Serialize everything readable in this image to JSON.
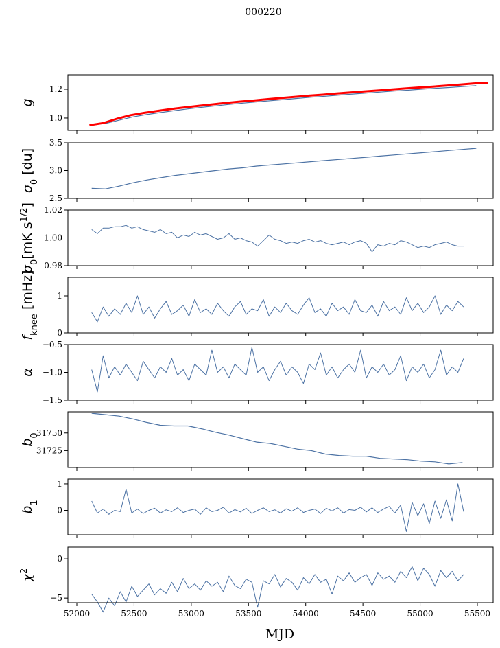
{
  "chart_data": {
    "type": "line",
    "title": "000220",
    "xlabel": "MJD",
    "xlim": [
      51922,
      55638
    ],
    "xticks": [
      52000,
      52500,
      53000,
      53500,
      54000,
      54500,
      55000,
      55500
    ],
    "line_color": "#4c72a4",
    "panels": [
      {
        "ylabel": {
          "main": "g",
          "sub": "",
          "sup": "",
          "tail": ""
        },
        "ylim": [
          0.914,
          1.3
        ],
        "yticks": [
          {
            "v": 1.0,
            "t": "1.0"
          },
          {
            "v": 1.2,
            "t": "1.2"
          }
        ],
        "series": [
          {
            "name": "g",
            "color": "#4c72a4",
            "width": 1.2,
            "x_start": 52130,
            "x_step": 120,
            "values": [
              0.958,
              0.962,
              0.985,
              1.008,
              1.024,
              1.038,
              1.051,
              1.063,
              1.074,
              1.084,
              1.094,
              1.103,
              1.112,
              1.12,
              1.128,
              1.136,
              1.144,
              1.151,
              1.159,
              1.166,
              1.173,
              1.18,
              1.187,
              1.193,
              1.2,
              1.206,
              1.212,
              1.218,
              1.224
            ]
          },
          {
            "name": "g_ref",
            "color": "#ff0000",
            "width": 3,
            "x_start": 52110,
            "x_step": 120,
            "values": [
              0.95,
              0.965,
              0.995,
              1.02,
              1.036,
              1.05,
              1.063,
              1.074,
              1.085,
              1.095,
              1.105,
              1.114,
              1.122,
              1.131,
              1.139,
              1.147,
              1.155,
              1.162,
              1.17,
              1.177,
              1.184,
              1.191,
              1.198,
              1.205,
              1.212,
              1.218,
              1.225,
              1.232,
              1.24,
              1.245
            ]
          }
        ]
      },
      {
        "ylabel": {
          "main": "σ",
          "sub": "0",
          "sup": "",
          "tail": " [du]"
        },
        "ylim": [
          2.5,
          3.5
        ],
        "yticks": [
          {
            "v": 2.5,
            "t": "2.5"
          },
          {
            "v": 3.0,
            "t": "3.0"
          },
          {
            "v": 3.5,
            "t": "3.5"
          }
        ],
        "series": [
          {
            "name": "sigma0_du",
            "color": "#4c72a4",
            "width": 1.2,
            "x_start": 52130,
            "x_step": 120,
            "values": [
              2.68,
              2.67,
              2.72,
              2.78,
              2.83,
              2.87,
              2.91,
              2.94,
              2.97,
              3.0,
              3.03,
              3.05,
              3.08,
              3.1,
              3.12,
              3.14,
              3.16,
              3.18,
              3.2,
              3.22,
              3.24,
              3.26,
              3.28,
              3.3,
              3.32,
              3.34,
              3.36,
              3.38,
              3.4
            ]
          }
        ]
      },
      {
        "ylabel": {
          "main": "σ",
          "sub": "0",
          "sup": "",
          "tail": "[mK s",
          "sup2": "1/2",
          "tail2": "]"
        },
        "ylim": [
          0.98,
          1.02
        ],
        "yticks": [
          {
            "v": 0.98,
            "t": "0.98"
          },
          {
            "v": 1.0,
            "t": "1.00"
          },
          {
            "v": 1.02,
            "t": "1.02"
          }
        ],
        "series": [
          {
            "name": "sigma0_mK",
            "color": "#4c72a4",
            "width": 1,
            "x_start": 52130,
            "x_step": 50,
            "values": [
              1.006,
              1.003,
              1.007,
              1.007,
              1.008,
              1.008,
              1.009,
              1.007,
              1.008,
              1.006,
              1.005,
              1.004,
              1.006,
              1.003,
              1.004,
              1.0,
              1.002,
              1.001,
              1.004,
              1.002,
              1.003,
              1.001,
              0.999,
              1.0,
              1.003,
              0.999,
              1.0,
              0.998,
              0.997,
              0.994,
              0.998,
              1.002,
              0.999,
              0.998,
              0.996,
              0.997,
              0.996,
              0.998,
              0.999,
              0.997,
              0.998,
              0.996,
              0.995,
              0.996,
              0.997,
              0.995,
              0.997,
              0.998,
              0.996,
              0.99,
              0.995,
              0.994,
              0.996,
              0.995,
              0.998,
              0.997,
              0.995,
              0.993,
              0.994,
              0.993,
              0.995,
              0.996,
              0.997,
              0.995,
              0.994,
              0.994
            ]
          }
        ]
      },
      {
        "ylabel": {
          "main": "f",
          "sub": "knee",
          "sup": "",
          "tail": " [mHz]"
        },
        "ylim": [
          0,
          1.5
        ],
        "yticks": [
          {
            "v": 0,
            "t": "0"
          },
          {
            "v": 1,
            "t": "1"
          }
        ],
        "series": [
          {
            "name": "fknee",
            "color": "#4c72a4",
            "width": 1,
            "x_start": 52130,
            "x_step": 50,
            "values": [
              0.55,
              0.3,
              0.7,
              0.45,
              0.65,
              0.5,
              0.8,
              0.55,
              1.0,
              0.5,
              0.7,
              0.4,
              0.65,
              0.85,
              0.5,
              0.6,
              0.75,
              0.45,
              0.9,
              0.55,
              0.65,
              0.5,
              0.8,
              0.6,
              0.45,
              0.7,
              0.85,
              0.5,
              0.65,
              0.6,
              0.9,
              0.45,
              0.7,
              0.55,
              0.8,
              0.6,
              0.5,
              0.75,
              0.95,
              0.55,
              0.65,
              0.45,
              0.8,
              0.6,
              0.7,
              0.5,
              0.9,
              0.6,
              0.55,
              0.75,
              0.45,
              0.85,
              0.6,
              0.7,
              0.5,
              0.95,
              0.6,
              0.8,
              0.55,
              0.7,
              1.0,
              0.5,
              0.75,
              0.6,
              0.85,
              0.7
            ]
          }
        ]
      },
      {
        "ylabel": {
          "main": "α",
          "sub": "",
          "sup": "",
          "tail": ""
        },
        "ylim": [
          -1.5,
          -0.5
        ],
        "yticks": [
          {
            "v": -1.5,
            "t": "−1.5"
          },
          {
            "v": -1.0,
            "t": "−1.0"
          },
          {
            "v": -0.5,
            "t": "−0.5"
          }
        ],
        "series": [
          {
            "name": "alpha",
            "color": "#4c72a4",
            "width": 1,
            "x_start": 52130,
            "x_step": 50,
            "values": [
              -0.95,
              -1.35,
              -0.7,
              -1.1,
              -0.9,
              -1.05,
              -0.85,
              -1.0,
              -1.15,
              -0.8,
              -0.95,
              -1.1,
              -0.9,
              -1.0,
              -0.75,
              -1.05,
              -0.95,
              -1.15,
              -0.85,
              -0.95,
              -1.05,
              -0.6,
              -1.0,
              -0.9,
              -1.1,
              -0.85,
              -0.95,
              -1.05,
              -0.55,
              -1.0,
              -0.9,
              -1.15,
              -0.95,
              -0.8,
              -1.05,
              -0.9,
              -1.0,
              -1.2,
              -0.85,
              -0.95,
              -0.65,
              -1.05,
              -0.9,
              -1.1,
              -0.95,
              -0.85,
              -1.0,
              -0.6,
              -1.1,
              -0.9,
              -1.0,
              -0.85,
              -1.05,
              -0.95,
              -0.7,
              -1.15,
              -0.9,
              -1.0,
              -0.85,
              -1.1,
              -0.95,
              -0.6,
              -1.05,
              -0.9,
              -1.0,
              -0.75
            ]
          }
        ]
      },
      {
        "ylabel": {
          "main": "b",
          "sub": "0",
          "sup": "",
          "tail": ""
        },
        "ylim": [
          31701,
          31780
        ],
        "yticks": [
          {
            "v": 31725,
            "t": "31725"
          },
          {
            "v": 31750,
            "t": "31750"
          }
        ],
        "series": [
          {
            "name": "b0",
            "color": "#4c72a4",
            "width": 1.2,
            "x_start": 52130,
            "x_step": 120,
            "values": [
              31778,
              31776,
              31774,
              31770,
              31765,
              31761,
              31760,
              31760,
              31756,
              31751,
              31747,
              31742,
              31737,
              31735,
              31731,
              31727,
              31725,
              31720,
              31718,
              31717,
              31717,
              31714,
              31713,
              31712,
              31710,
              31709,
              31706,
              31708
            ]
          }
        ]
      },
      {
        "ylabel": {
          "main": "b",
          "sub": "1",
          "sup": "",
          "tail": ""
        },
        "ylim": [
          -0.92,
          1.18
        ],
        "yticks": [
          {
            "v": 0,
            "t": "0"
          },
          {
            "v": 1,
            "t": "1"
          }
        ],
        "series": [
          {
            "name": "b1",
            "color": "#4c72a4",
            "width": 1,
            "x_start": 52130,
            "x_step": 50,
            "values": [
              0.35,
              -0.1,
              0.05,
              -0.15,
              0.0,
              -0.05,
              0.8,
              -0.1,
              0.05,
              -0.12,
              0.0,
              0.08,
              -0.1,
              0.02,
              -0.05,
              0.1,
              -0.08,
              0.0,
              0.05,
              -0.15,
              0.1,
              -0.05,
              0.0,
              0.12,
              -0.1,
              0.03,
              -0.06,
              0.08,
              -0.12,
              0.0,
              0.1,
              -0.05,
              0.02,
              -0.1,
              0.06,
              -0.03,
              0.1,
              -0.08,
              0.0,
              0.05,
              -0.12,
              0.08,
              -0.02,
              0.1,
              -0.1,
              0.03,
              0.0,
              0.12,
              -0.06,
              0.1,
              -0.08,
              0.05,
              0.15,
              -0.1,
              0.2,
              -0.8,
              0.3,
              -0.2,
              0.25,
              -0.5,
              0.35,
              -0.3,
              0.4,
              -0.4,
              1.0,
              -0.05
            ]
          }
        ]
      },
      {
        "ylabel": {
          "main": "χ",
          "sub": "",
          "sup": "2",
          "tail": ""
        },
        "ylim": [
          -5.6,
          1.5
        ],
        "yticks": [
          {
            "v": -5,
            "t": "−5"
          },
          {
            "v": 0,
            "t": "0"
          }
        ],
        "series": [
          {
            "name": "chi2",
            "color": "#4c72a4",
            "width": 1,
            "x_start": 52130,
            "x_step": 50,
            "values": [
              -4.5,
              -5.5,
              -6.8,
              -5.0,
              -6.0,
              -4.2,
              -5.5,
              -3.5,
              -4.8,
              -4.0,
              -3.2,
              -4.6,
              -3.8,
              -4.4,
              -3.0,
              -4.2,
              -2.5,
              -3.8,
              -3.2,
              -4.0,
              -2.8,
              -3.5,
              -3.0,
              -4.2,
              -2.2,
              -3.4,
              -3.8,
              -2.6,
              -3.0,
              -6.2,
              -2.8,
              -3.2,
              -2.0,
              -3.6,
              -2.5,
              -3.0,
              -4.0,
              -2.4,
              -3.2,
              -2.0,
              -3.0,
              -2.6,
              -4.5,
              -2.2,
              -2.8,
              -1.8,
              -3.0,
              -2.4,
              -2.0,
              -3.4,
              -1.8,
              -2.6,
              -2.2,
              -3.0,
              -1.6,
              -2.4,
              -1.0,
              -2.8,
              -1.2,
              -2.0,
              -3.5,
              -1.5,
              -2.4,
              -1.6,
              -2.8,
              -2.0
            ]
          }
        ]
      }
    ]
  }
}
